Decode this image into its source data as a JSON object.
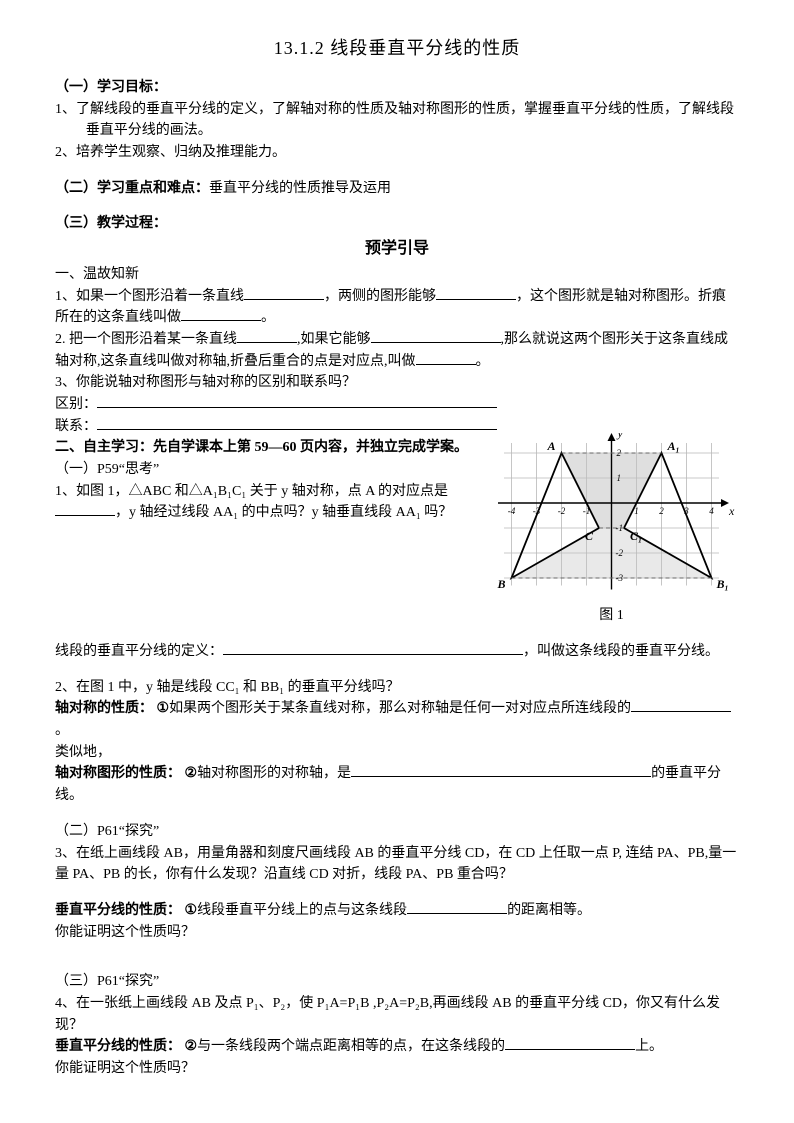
{
  "title": "13.1.2 线段垂直平分线的性质",
  "s1": {
    "head": "（一）学习目标：",
    "i1": "1、了解线段的垂直平分线的定义，了解轴对称的性质及轴对称图形的性质，掌握垂直平分线的性质，了解线段垂直平分线的画法。",
    "i2": "2、培养学生观察、归纳及推理能力。"
  },
  "s2": {
    "head": "（二）学习重点和难点：",
    "body": "垂直平分线的性质推导及运用"
  },
  "s3": {
    "head": "（三）教学过程：",
    "sub": "预学引导"
  },
  "rev": {
    "head": "一、温故知新",
    "q1a": "1、如果一个图形沿着一条直线",
    "q1b": "，两侧的图形能够",
    "q1c": "，这个图形就是轴对称图形。折痕所在的这条直线叫做",
    "q1d": "。",
    "q2a": "2. 把一个图形沿着某一条直线",
    "q2b": ",如果它能够",
    "q2c": ",那么就说这两个图形关于这条直线成轴对称,这条直线叫做对称轴,折叠后重合的点是对应点,叫做",
    "q2d": "。",
    "q3": "3、你能说轴对称图形与轴对称的区别和联系吗？",
    "diff": "区别：",
    "rel": "联系："
  },
  "self": {
    "head": "二、自主学习：先自学课本上第 59—60 页内容，并独立完成学案。",
    "p1head": "（一）P59“思考”",
    "p1q1a": "1、如图 1，△ABC 和△A₁B₁C₁ 关于 y 轴对称，点 A 的对应点是",
    "p1q1b": "，y 轴经过线段 AA₁ 的中点吗？y 轴垂直线段 AA₁ 吗？",
    "defA": "线段的垂直平分线的定义：",
    "defB": "，叫做这条线段的垂直平分线。",
    "p1q2": "2、在图 1 中，y 轴是线段 CC₁ 和 BB₁ 的垂直平分线吗？",
    "prop1a": "轴对称的性质：",
    "prop1n": "①",
    "prop1b": "如果两个图形关于某条直线对称，那么对称轴是任何一对对应点所连线段的",
    "prop1c": "。",
    "simil": "类似地，",
    "prop2a": "轴对称图形的性质：",
    "prop2n": "②",
    "prop2b": "轴对称图形的对称轴，是",
    "prop2c": "的垂直平分线。",
    "p2head": "（二）P61“探究”",
    "p2q3": "3、在纸上画线段 AB，用量角器和刻度尺画线段 AB 的垂直平分线 CD，在 CD 上任取一点 P, 连结 PA、PB,量一量 PA、PB 的长，你有什么发现？沿直线 CD 对折，线段 PA、PB 重合吗？",
    "prop3a": "垂直平分线的性质：",
    "prop3n": "①",
    "prop3b": "线段垂直平分线上的点与这条线段",
    "prop3c": "的距离相等。",
    "prove1": "你能证明这个性质吗？",
    "p3head": "（三）P61“探究”",
    "p3q4": "4、在一张纸上画线段 AB 及点 P₁、P₂，使 P₁A=P₁B ,P₂A=P₂B,再画线段 AB 的垂直平分线 CD，你又有什么发现？",
    "prop4a": "垂直平分线的性质：",
    "prop4n": "②",
    "prop4b": "与一条线段两个端点距离相等的点，在这条线段的",
    "prop4c": "上。",
    "prove2": "你能证明这个性质吗？"
  },
  "fig": {
    "caption": "图 1",
    "labels": {
      "A": "A",
      "A1": "A₁",
      "B": "B",
      "B1": "B₁",
      "C": "C",
      "C1": "C₁",
      "x": "x",
      "y": "y"
    },
    "xticks": [
      "-4",
      "-3",
      "-2",
      "-1",
      "1",
      "2",
      "3",
      "4"
    ],
    "yticks_pos": [
      "1",
      "2"
    ],
    "yticks_neg": [
      "-1",
      "-2",
      "-3"
    ],
    "colors": {
      "grid": "#b8b8b8",
      "axis": "#000000",
      "shape": "#000000",
      "shade": "#bfbfbf",
      "dash": "#666666"
    },
    "range": {
      "xmin": -4.5,
      "xmax": 4.5,
      "ymin": -3.5,
      "ymax": 2.6
    },
    "unit": 25,
    "points": {
      "A": {
        "x": -2,
        "y": 2
      },
      "A1": {
        "x": 2,
        "y": 2
      },
      "B": {
        "x": -4,
        "y": -3
      },
      "B1": {
        "x": 4,
        "y": -3
      },
      "C": {
        "x": -0.5,
        "y": -1
      },
      "C1": {
        "x": 0.5,
        "y": -1
      }
    }
  }
}
